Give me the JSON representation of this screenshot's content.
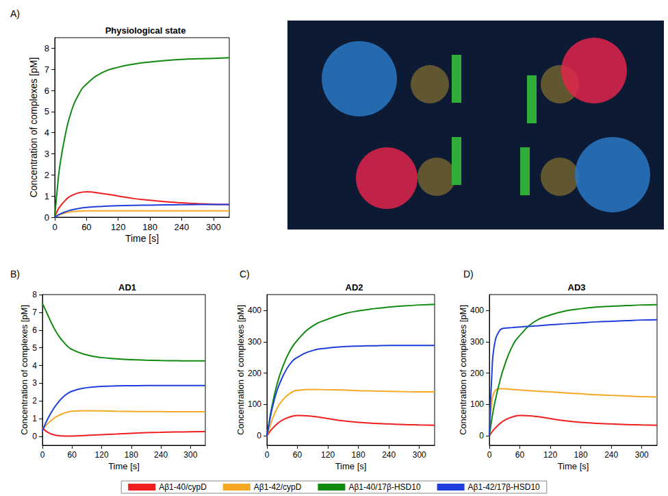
{
  "chart_data": [
    {
      "type": "line",
      "panel_label": "A)",
      "title": "Physiological state",
      "x_label": "Time [s]",
      "y_label": "Concentration of complexes [pM]",
      "x": [
        0,
        5,
        10,
        20,
        30,
        45,
        60,
        90,
        120,
        150,
        180,
        210,
        240,
        270,
        300,
        330
      ],
      "xlim": [
        0,
        330
      ],
      "xticks": [
        0,
        60,
        120,
        180,
        240,
        300
      ],
      "ylim": [
        0,
        8.5
      ],
      "yticks": [
        0,
        1,
        2,
        3,
        4,
        5,
        6,
        7,
        8
      ],
      "grid": false,
      "legend": "bottom",
      "series": [
        {
          "name": "Aβ1-40/cypD",
          "color": "#f01e1e",
          "values": [
            0,
            0.3,
            0.5,
            0.8,
            1.0,
            1.15,
            1.2,
            1.12,
            1.0,
            0.88,
            0.8,
            0.73,
            0.68,
            0.64,
            0.61,
            0.6
          ]
        },
        {
          "name": "Aβ1-42/cypD",
          "color": "#f7a823",
          "values": [
            0,
            0.07,
            0.12,
            0.2,
            0.25,
            0.28,
            0.3,
            0.3,
            0.3,
            0.3,
            0.3,
            0.3,
            0.3,
            0.3,
            0.3,
            0.3
          ]
        },
        {
          "name": "Aβ1-40/17β-HSD10",
          "color": "#0f8a0f",
          "values": [
            0,
            1.4,
            2.5,
            3.9,
            4.9,
            5.8,
            6.3,
            6.85,
            7.1,
            7.25,
            7.35,
            7.42,
            7.47,
            7.5,
            7.52,
            7.55
          ]
        },
        {
          "name": "Aβ1-42/17β-HSD10",
          "color": "#1f3fdc",
          "values": [
            0,
            0.08,
            0.15,
            0.25,
            0.33,
            0.41,
            0.46,
            0.51,
            0.54,
            0.56,
            0.57,
            0.58,
            0.59,
            0.6,
            0.6,
            0.6
          ]
        }
      ]
    },
    {
      "type": "line",
      "panel_label": "B)",
      "title": "AD1",
      "x_label": "Time [s]",
      "y_label": "Concentration of complexes [pM]",
      "x": [
        0,
        5,
        10,
        20,
        30,
        45,
        60,
        90,
        120,
        150,
        180,
        210,
        240,
        270,
        300,
        330
      ],
      "xlim": [
        0,
        330
      ],
      "xticks": [
        0,
        60,
        120,
        180,
        240,
        300
      ],
      "ylim": [
        -0.5,
        8
      ],
      "yticks": [
        0,
        1,
        2,
        3,
        4,
        5,
        6,
        7,
        8
      ],
      "grid": false,
      "legend": "bottom",
      "series": [
        {
          "name": "Aβ1-40/cypD",
          "color": "#f01e1e",
          "values": [
            0.5,
            0.35,
            0.25,
            0.12,
            0.05,
            0.02,
            0.02,
            0.06,
            0.1,
            0.14,
            0.18,
            0.21,
            0.23,
            0.25,
            0.26,
            0.27
          ]
        },
        {
          "name": "Aβ1-42/cypD",
          "color": "#f7a823",
          "values": [
            0.4,
            0.55,
            0.7,
            0.95,
            1.15,
            1.32,
            1.42,
            1.45,
            1.44,
            1.42,
            1.41,
            1.4,
            1.4,
            1.39,
            1.39,
            1.39
          ]
        },
        {
          "name": "Aβ1-40/17β-HSD10",
          "color": "#0f8a0f",
          "values": [
            7.5,
            7.2,
            6.9,
            6.3,
            5.8,
            5.25,
            4.9,
            4.6,
            4.45,
            4.38,
            4.33,
            4.3,
            4.28,
            4.27,
            4.26,
            4.26
          ]
        },
        {
          "name": "Aβ1-42/17β-HSD10",
          "color": "#1f3fdc",
          "values": [
            0.3,
            0.65,
            0.95,
            1.45,
            1.85,
            2.3,
            2.55,
            2.75,
            2.82,
            2.85,
            2.86,
            2.87,
            2.87,
            2.87,
            2.87,
            2.87
          ]
        }
      ]
    },
    {
      "type": "line",
      "panel_label": "C)",
      "title": "AD2",
      "x_label": "Time [s]",
      "y_label": "Concentration of complexes [pM]",
      "x": [
        0,
        5,
        10,
        20,
        30,
        45,
        60,
        90,
        120,
        150,
        180,
        210,
        240,
        270,
        300,
        330
      ],
      "xlim": [
        0,
        330
      ],
      "xticks": [
        0,
        60,
        120,
        180,
        240,
        300
      ],
      "ylim": [
        -30,
        450
      ],
      "yticks": [
        0,
        100,
        200,
        300,
        400
      ],
      "grid": false,
      "legend": "bottom",
      "series": [
        {
          "name": "Aβ1-40/cypD",
          "color": "#f01e1e",
          "values": [
            0,
            12,
            22,
            38,
            50,
            60,
            65,
            62,
            55,
            48,
            43,
            40,
            38,
            36,
            35,
            34
          ]
        },
        {
          "name": "Aβ1-42/cypD",
          "color": "#f7a823",
          "values": [
            0,
            25,
            50,
            88,
            112,
            135,
            145,
            148,
            147,
            146,
            144,
            143,
            142,
            141,
            140,
            140
          ]
        },
        {
          "name": "Aβ1-40/17β-HSD10",
          "color": "#0f8a0f",
          "values": [
            0,
            50,
            95,
            165,
            215,
            270,
            305,
            350,
            372,
            388,
            398,
            405,
            410,
            414,
            417,
            419
          ]
        },
        {
          "name": "Aβ1-42/17β-HSD10",
          "color": "#1f3fdc",
          "values": [
            0,
            45,
            85,
            145,
            185,
            228,
            250,
            272,
            280,
            284,
            286,
            287,
            288,
            288,
            288,
            288
          ]
        }
      ]
    },
    {
      "type": "line",
      "panel_label": "D)",
      "title": "AD3",
      "x_label": "Time [s]",
      "y_label": "Concentration of complexes [pM]",
      "x": [
        0,
        5,
        10,
        20,
        30,
        45,
        60,
        90,
        120,
        150,
        180,
        210,
        240,
        270,
        300,
        330
      ],
      "xlim": [
        0,
        330
      ],
      "xticks": [
        0,
        60,
        120,
        180,
        240,
        300
      ],
      "ylim": [
        -30,
        450
      ],
      "yticks": [
        0,
        100,
        200,
        300,
        400
      ],
      "grid": false,
      "legend": "bottom",
      "series": [
        {
          "name": "Aβ1-40/cypD",
          "color": "#f01e1e",
          "values": [
            0,
            12,
            22,
            38,
            50,
            60,
            65,
            62,
            55,
            48,
            43,
            40,
            38,
            36,
            35,
            34
          ]
        },
        {
          "name": "Aβ1-42/cypD",
          "color": "#f7a823",
          "values": [
            0,
            110,
            140,
            150,
            150,
            148,
            146,
            143,
            140,
            137,
            134,
            131,
            129,
            127,
            125,
            124
          ]
        },
        {
          "name": "Aβ1-40/17β-HSD10",
          "color": "#0f8a0f",
          "values": [
            0,
            55,
            100,
            170,
            225,
            285,
            320,
            365,
            385,
            398,
            405,
            410,
            413,
            415,
            417,
            418
          ]
        },
        {
          "name": "Aβ1-42/17β-HSD10",
          "color": "#1f3fdc",
          "values": [
            0,
            200,
            290,
            335,
            343,
            345,
            347,
            350,
            354,
            357,
            360,
            363,
            365,
            367,
            369,
            370
          ]
        }
      ]
    }
  ]
}
